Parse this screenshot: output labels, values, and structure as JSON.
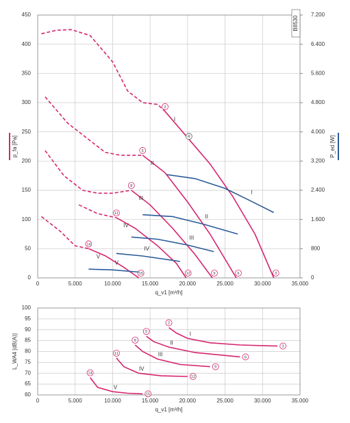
{
  "chart_data": [
    {
      "type": "line",
      "tag": "B8530",
      "xlabel": "q_v1 [m³/h]",
      "ylabel": "p_fa [Pa]",
      "y2label": "P_ed [W]",
      "xlim": [
        0,
        35000
      ],
      "ylim": [
        0,
        450
      ],
      "y2lim": [
        0,
        7200
      ],
      "grid": true,
      "xticks": [
        0,
        {
          "value": 5000,
          "label": "5.000"
        },
        {
          "value": 10000,
          "label": "10.000"
        },
        {
          "value": 15000,
          "label": "15.000"
        },
        {
          "value": 20000,
          "label": "20.000"
        },
        {
          "value": 25000,
          "label": "25.000"
        },
        {
          "value": 30000,
          "label": "30.000"
        },
        {
          "value": 35000,
          "label": "35.000"
        }
      ],
      "yticks": [
        0,
        50,
        100,
        150,
        200,
        250,
        300,
        350,
        400,
        450
      ],
      "y2ticks": [
        0,
        800,
        {
          "value": 1600,
          "label": "1.600"
        },
        {
          "value": 2400,
          "label": "2.400"
        },
        {
          "value": 3200,
          "label": "3.200"
        },
        {
          "value": 4000,
          "label": "4.000"
        },
        {
          "value": 4800,
          "label": "4.800"
        },
        {
          "value": 5600,
          "label": "5.600"
        },
        {
          "value": 6400,
          "label": "6.400"
        },
        {
          "value": 7200,
          "label": "7.200"
        }
      ],
      "series": [
        {
          "label": "I",
          "color": "#d6246e",
          "start_label": "2",
          "end_label": "3",
          "point_label": "R",
          "x": [
            17000,
            20000,
            23000,
            26000,
            29000,
            31500
          ],
          "values": [
            285,
            240,
            195,
            140,
            75,
            0
          ]
        },
        {
          "label": "II",
          "color": "#d6246e",
          "start_label": "5",
          "end_label": "6",
          "x": [
            14000,
            17000,
            20000,
            23000,
            26500
          ],
          "values": [
            210,
            180,
            130,
            75,
            0
          ]
        },
        {
          "label": "III",
          "color": "#d6246e",
          "start_label": "8",
          "end_label": "9",
          "x": [
            12500,
            15000,
            18000,
            21000,
            23300
          ],
          "values": [
            150,
            125,
            85,
            40,
            0
          ]
        },
        {
          "label": "IV",
          "color": "#d6246e",
          "start_label": "11",
          "end_label": "12",
          "x": [
            10500,
            13000,
            16000,
            18500,
            19800
          ],
          "values": [
            103,
            85,
            55,
            25,
            0
          ]
        },
        {
          "label": "V",
          "color": "#d6246e",
          "start_label": "14",
          "end_label": "15",
          "x": [
            6800,
            9000,
            11500,
            13500
          ],
          "values": [
            50,
            38,
            18,
            0
          ]
        },
        {
          "style": "dashed",
          "color": "#d6246e",
          "x": [
            500,
            2500,
            4500,
            7000,
            10000,
            12000,
            14000,
            16000,
            17000
          ],
          "values": [
            418,
            424,
            425,
            415,
            370,
            320,
            300,
            297,
            285
          ]
        },
        {
          "style": "dashed",
          "color": "#d6246e",
          "x": [
            1000,
            4000,
            7000,
            9000,
            11000,
            14000
          ],
          "values": [
            310,
            265,
            235,
            215,
            210,
            210
          ]
        },
        {
          "style": "dashed",
          "color": "#d6246e",
          "x": [
            1000,
            3500,
            6000,
            8000,
            10000,
            12500
          ],
          "values": [
            218,
            175,
            150,
            145,
            145,
            150
          ]
        },
        {
          "style": "dashed",
          "color": "#d6246e",
          "x": [
            5500,
            8000,
            10500
          ],
          "values": [
            125,
            110,
            103
          ]
        },
        {
          "style": "dashed",
          "color": "#d6246e",
          "x": [
            500,
            3000,
            5000,
            6800
          ],
          "values": [
            105,
            80,
            55,
            50
          ]
        },
        {
          "label": "I",
          "axis": "y2",
          "color": "#2a5b9a",
          "x": [
            17200,
            21000,
            25000,
            28000,
            31500
          ],
          "values": [
            2830,
            2720,
            2450,
            2150,
            1790
          ]
        },
        {
          "label": "II",
          "axis": "y2",
          "color": "#2a5b9a",
          "x": [
            14000,
            18000,
            22000,
            26700
          ],
          "values": [
            1730,
            1680,
            1480,
            1200
          ]
        },
        {
          "label": "III",
          "axis": "y2",
          "color": "#2a5b9a",
          "x": [
            12500,
            16000,
            20000,
            23500
          ],
          "values": [
            1120,
            1060,
            900,
            720
          ]
        },
        {
          "label": "IV",
          "axis": "y2",
          "color": "#2a5b9a",
          "x": [
            10500,
            14000,
            19000
          ],
          "values": [
            670,
            600,
            450
          ]
        },
        {
          "label": "V",
          "axis": "y2",
          "color": "#2a5b9a",
          "x": [
            6800,
            10000,
            13500
          ],
          "values": [
            240,
            220,
            160
          ]
        }
      ]
    },
    {
      "type": "line",
      "xlabel": "q_v1 [m³/h]",
      "ylabel": "L_WA4 [dB(A)]",
      "xlim": [
        0,
        35000
      ],
      "ylim": [
        60,
        100
      ],
      "grid": true,
      "xticks": [
        0,
        {
          "value": 5000,
          "label": "5.000"
        },
        {
          "value": 10000,
          "label": "10.000"
        },
        {
          "value": 15000,
          "label": "15.000"
        },
        {
          "value": 20000,
          "label": "20.000"
        },
        {
          "value": 25000,
          "label": "25.000"
        },
        {
          "value": 30000,
          "label": "30.000"
        },
        {
          "value": 35000,
          "label": "35.000"
        }
      ],
      "yticks": [
        60,
        65,
        70,
        75,
        80,
        85,
        90,
        95,
        100
      ],
      "series": [
        {
          "label": "I",
          "color": "#d6246e",
          "start_label": "2",
          "end_label": "3",
          "x": [
            17500,
            18500,
            20000,
            23000,
            27000,
            32000
          ],
          "values": [
            91,
            88.5,
            86,
            84,
            83,
            82.5
          ]
        },
        {
          "label": "II",
          "color": "#d6246e",
          "start_label": "5",
          "end_label": "6",
          "x": [
            14500,
            15500,
            17500,
            21000,
            27000
          ],
          "values": [
            87,
            84.5,
            82,
            79.5,
            77.5
          ]
        },
        {
          "label": "III",
          "color": "#d6246e",
          "start_label": "8",
          "end_label": "9",
          "x": [
            13000,
            14000,
            16000,
            19000,
            23000
          ],
          "values": [
            83,
            80,
            76.5,
            74,
            73
          ]
        },
        {
          "label": "IV",
          "color": "#d6246e",
          "start_label": "11",
          "end_label": "12",
          "x": [
            10500,
            11500,
            13500,
            16500,
            20000
          ],
          "values": [
            77,
            73,
            70,
            68.8,
            68.5
          ]
        },
        {
          "label": "V",
          "color": "#d6246e",
          "start_label": "14",
          "end_label": "15",
          "x": [
            7000,
            8000,
            10000,
            12000,
            14000
          ],
          "values": [
            68,
            63.5,
            61.5,
            60.8,
            60.5
          ]
        }
      ]
    }
  ]
}
